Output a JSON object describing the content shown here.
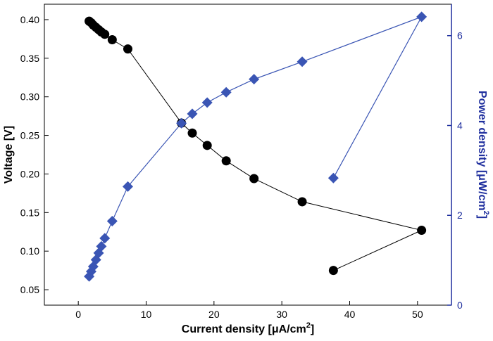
{
  "chart_data": {
    "type": "scatter",
    "xlabel": "Current density [μA/cm2]",
    "ylabel_left": "Voltage [V]",
    "ylabel_right": "Power density [μW/cm2]",
    "x_axis": {
      "min": -5,
      "max": 55,
      "ticks": [
        0,
        10,
        20,
        30,
        40,
        50
      ],
      "tick_labels": [
        "0",
        "10",
        "20",
        "30",
        "40",
        "50"
      ]
    },
    "y_left_axis": {
      "min": 0.03,
      "max": 0.42,
      "ticks": [
        0.05,
        0.1,
        0.15,
        0.2,
        0.25,
        0.3,
        0.35,
        0.4
      ],
      "tick_labels": [
        "0.05",
        "0.10",
        "0.15",
        "0.20",
        "0.25",
        "0.30",
        "0.35",
        "0.40"
      ]
    },
    "y_right_axis": {
      "min": 0,
      "max": 6.7,
      "ticks": [
        0,
        2,
        4,
        6
      ],
      "tick_labels": [
        "0",
        "2",
        "4",
        "6"
      ]
    },
    "colors": {
      "voltage": "#000000",
      "power": "#3a55b4",
      "right_axis": "#1f2f9e"
    },
    "series": [
      {
        "axis": "left",
        "marker": "circle",
        "x": [
          1.6,
          1.9,
          2.2,
          2.6,
          3.0,
          3.4,
          3.9,
          5.0,
          7.3,
          15.2,
          16.8,
          19.0,
          21.8,
          25.9,
          33.0,
          50.6,
          37.6
        ],
        "y": [
          0.398,
          0.396,
          0.393,
          0.39,
          0.387,
          0.384,
          0.381,
          0.374,
          0.362,
          0.266,
          0.253,
          0.237,
          0.217,
          0.194,
          0.164,
          0.127,
          0.075
        ]
      },
      {
        "axis": "right",
        "marker": "diamond",
        "x": [
          1.6,
          1.9,
          2.2,
          2.6,
          3.0,
          3.4,
          3.9,
          5.0,
          7.3,
          15.2,
          16.8,
          19.0,
          21.8,
          25.9,
          33.0,
          50.6,
          37.6
        ],
        "y": [
          0.64,
          0.75,
          0.86,
          1.01,
          1.16,
          1.31,
          1.49,
          1.87,
          2.64,
          4.05,
          4.26,
          4.51,
          4.74,
          5.03,
          5.42,
          6.42,
          2.83
        ]
      }
    ]
  }
}
